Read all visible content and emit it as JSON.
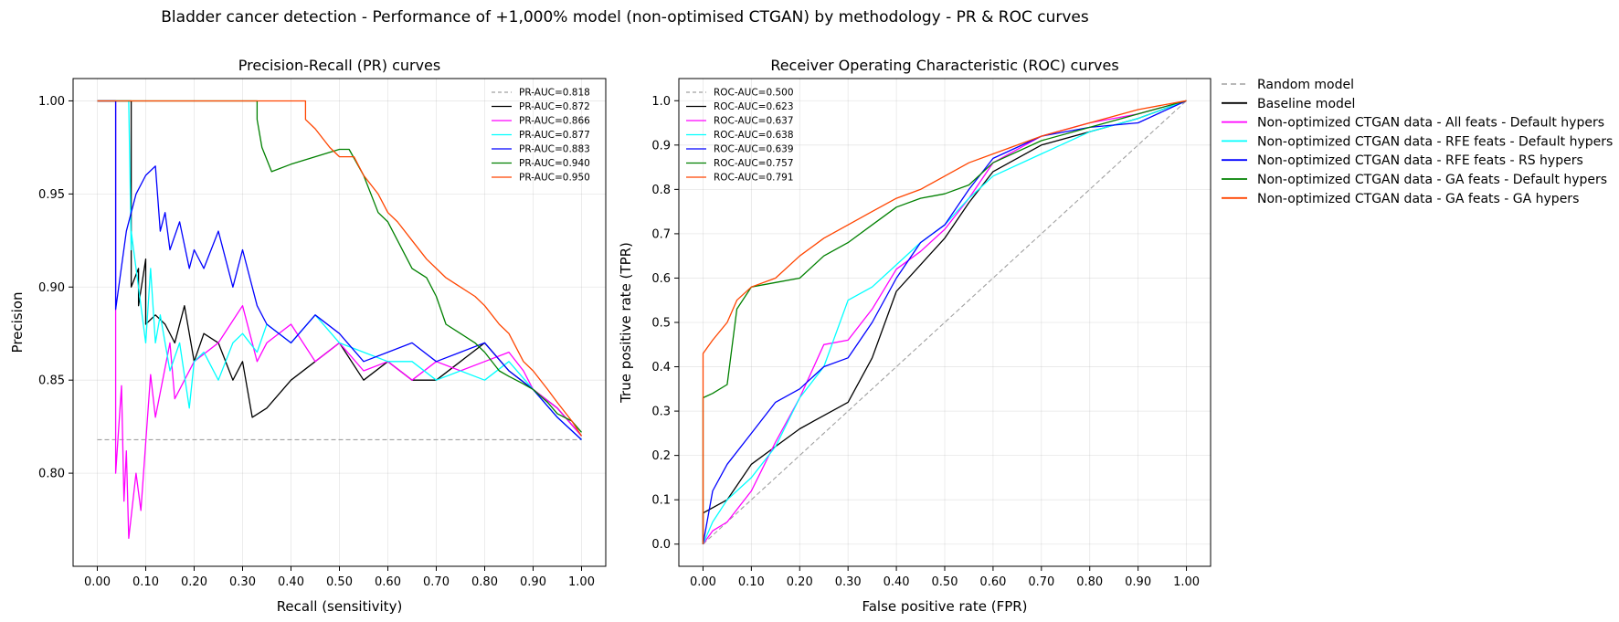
{
  "figure_title": "Bladder cancer detection - Performance of +1,000% model (non-optimised CTGAN) by methodology - PR & ROC curves",
  "figure_legend": [
    {
      "label": "Random model",
      "color": "#a0a0a0",
      "dashed": true
    },
    {
      "label": "Baseline model",
      "color": "#000000",
      "dashed": false
    },
    {
      "label": "Non-optimized CTGAN data - All feats - Default hypers",
      "color": "#ff00ff",
      "dashed": false
    },
    {
      "label": "Non-optimized CTGAN data - RFE feats - Default hypers",
      "color": "#00ffff",
      "dashed": false
    },
    {
      "label": "Non-optimized CTGAN data - RFE feats - RS hypers",
      "color": "#0000ff",
      "dashed": false
    },
    {
      "label": "Non-optimized CTGAN data - GA feats - Default hypers",
      "color": "#008000",
      "dashed": false
    },
    {
      "label": "Non-optimized CTGAN data - GA feats - GA hypers",
      "color": "#ff4500",
      "dashed": false
    }
  ],
  "chart_data": [
    {
      "type": "line",
      "title": "Precision-Recall (PR) curves",
      "xlabel": "Recall (sensitivity)",
      "ylabel": "Precision",
      "xlim": [
        -0.05,
        1.05
      ],
      "ylim": [
        0.75,
        1.012
      ],
      "xticks": [
        "0.00",
        "0.10",
        "0.20",
        "0.30",
        "0.40",
        "0.50",
        "0.60",
        "0.70",
        "0.80",
        "0.90",
        "1.00"
      ],
      "yticks": [
        "0.80",
        "0.85",
        "0.90",
        "0.95",
        "1.00"
      ],
      "grid": true,
      "legend_position": "top-right",
      "series": [
        {
          "name": "PR-AUC=0.818",
          "color": "#a0a0a0",
          "dashed": true,
          "x": [
            0,
            1
          ],
          "y": [
            0.818,
            0.818
          ]
        },
        {
          "name": "PR-AUC=0.872",
          "color": "#000000",
          "x": [
            0,
            0.07,
            0.07,
            0.085,
            0.085,
            0.1,
            0.1,
            0.12,
            0.14,
            0.16,
            0.18,
            0.2,
            0.22,
            0.25,
            0.28,
            0.3,
            0.32,
            0.35,
            0.4,
            0.45,
            0.5,
            0.55,
            0.6,
            0.65,
            0.7,
            0.75,
            0.8,
            0.85,
            0.9,
            0.95,
            1.0
          ],
          "y": [
            1.0,
            1.0,
            0.9,
            0.91,
            0.89,
            0.915,
            0.88,
            0.885,
            0.88,
            0.87,
            0.89,
            0.86,
            0.875,
            0.87,
            0.85,
            0.86,
            0.83,
            0.835,
            0.85,
            0.86,
            0.87,
            0.85,
            0.86,
            0.85,
            0.85,
            0.86,
            0.87,
            0.855,
            0.845,
            0.835,
            0.82
          ]
        },
        {
          "name": "PR-AUC=0.866",
          "color": "#ff00ff",
          "x": [
            0,
            0.038,
            0.038,
            0.05,
            0.055,
            0.06,
            0.065,
            0.08,
            0.09,
            0.11,
            0.12,
            0.15,
            0.16,
            0.2,
            0.25,
            0.3,
            0.33,
            0.35,
            0.4,
            0.45,
            0.5,
            0.55,
            0.6,
            0.65,
            0.7,
            0.75,
            0.8,
            0.85,
            0.88,
            0.9,
            0.95,
            1.0
          ],
          "y": [
            1.0,
            1.0,
            0.8,
            0.847,
            0.785,
            0.812,
            0.765,
            0.8,
            0.78,
            0.853,
            0.83,
            0.87,
            0.84,
            0.86,
            0.87,
            0.89,
            0.86,
            0.87,
            0.88,
            0.86,
            0.87,
            0.855,
            0.86,
            0.85,
            0.86,
            0.855,
            0.86,
            0.865,
            0.855,
            0.845,
            0.835,
            0.82
          ]
        },
        {
          "name": "PR-AUC=0.877",
          "color": "#00ffff",
          "x": [
            0,
            0.06,
            0.065,
            0.07,
            0.07,
            0.1,
            0.11,
            0.12,
            0.13,
            0.15,
            0.17,
            0.19,
            0.2,
            0.22,
            0.25,
            0.28,
            0.3,
            0.33,
            0.35,
            0.4,
            0.45,
            0.5,
            0.55,
            0.6,
            0.65,
            0.7,
            0.75,
            0.8,
            0.85,
            0.9,
            0.95,
            1.0
          ],
          "y": [
            1.0,
            1.0,
            1.0,
            0.92,
            0.93,
            0.87,
            0.91,
            0.87,
            0.885,
            0.855,
            0.87,
            0.835,
            0.86,
            0.865,
            0.85,
            0.87,
            0.875,
            0.865,
            0.88,
            0.87,
            0.885,
            0.87,
            0.865,
            0.86,
            0.86,
            0.85,
            0.855,
            0.85,
            0.86,
            0.845,
            0.83,
            0.818
          ]
        },
        {
          "name": "PR-AUC=0.883",
          "color": "#0000ff",
          "x": [
            0,
            0.038,
            0.038,
            0.06,
            0.08,
            0.1,
            0.12,
            0.13,
            0.14,
            0.15,
            0.17,
            0.19,
            0.2,
            0.22,
            0.25,
            0.28,
            0.3,
            0.33,
            0.35,
            0.4,
            0.45,
            0.5,
            0.55,
            0.6,
            0.65,
            0.7,
            0.75,
            0.8,
            0.85,
            0.9,
            0.95,
            1.0
          ],
          "y": [
            1.0,
            1.0,
            0.888,
            0.93,
            0.95,
            0.96,
            0.965,
            0.93,
            0.94,
            0.92,
            0.935,
            0.91,
            0.92,
            0.91,
            0.93,
            0.9,
            0.92,
            0.89,
            0.88,
            0.87,
            0.885,
            0.875,
            0.86,
            0.865,
            0.87,
            0.86,
            0.865,
            0.87,
            0.855,
            0.845,
            0.83,
            0.818
          ]
        },
        {
          "name": "PR-AUC=0.940",
          "color": "#008000",
          "x": [
            0,
            0.33,
            0.33,
            0.34,
            0.36,
            0.4,
            0.45,
            0.5,
            0.52,
            0.55,
            0.58,
            0.6,
            0.62,
            0.65,
            0.68,
            0.7,
            0.72,
            0.75,
            0.78,
            0.8,
            0.83,
            0.85,
            0.88,
            0.9,
            0.93,
            0.95,
            0.98,
            1.0
          ],
          "y": [
            1.0,
            1.0,
            0.99,
            0.975,
            0.962,
            0.966,
            0.97,
            0.974,
            0.974,
            0.96,
            0.94,
            0.935,
            0.925,
            0.91,
            0.905,
            0.895,
            0.88,
            0.875,
            0.87,
            0.865,
            0.855,
            0.852,
            0.848,
            0.845,
            0.838,
            0.832,
            0.828,
            0.822
          ]
        },
        {
          "name": "PR-AUC=0.950",
          "color": "#ff4500",
          "x": [
            0,
            0.43,
            0.43,
            0.45,
            0.48,
            0.5,
            0.53,
            0.55,
            0.58,
            0.6,
            0.62,
            0.65,
            0.68,
            0.7,
            0.72,
            0.75,
            0.78,
            0.8,
            0.83,
            0.85,
            0.88,
            0.9,
            0.93,
            0.95,
            0.98,
            1.0
          ],
          "y": [
            1.0,
            1.0,
            0.99,
            0.985,
            0.975,
            0.97,
            0.97,
            0.96,
            0.95,
            0.94,
            0.935,
            0.925,
            0.915,
            0.91,
            0.905,
            0.9,
            0.895,
            0.89,
            0.88,
            0.875,
            0.86,
            0.855,
            0.845,
            0.838,
            0.828,
            0.82
          ]
        }
      ]
    },
    {
      "type": "line",
      "title": "Receiver Operating Characteristic (ROC) curves",
      "xlabel": "False positive rate (FPR)",
      "ylabel": "True positive rate (TPR)",
      "xlim": [
        -0.05,
        1.05
      ],
      "ylim": [
        -0.05,
        1.05
      ],
      "xticks": [
        "0.00",
        "0.10",
        "0.20",
        "0.30",
        "0.40",
        "0.50",
        "0.60",
        "0.70",
        "0.80",
        "0.90",
        "1.00"
      ],
      "yticks": [
        "0.0",
        "0.1",
        "0.2",
        "0.3",
        "0.4",
        "0.5",
        "0.6",
        "0.7",
        "0.8",
        "0.9",
        "1.0"
      ],
      "grid": true,
      "legend_position": "top-left",
      "series": [
        {
          "name": "ROC-AUC=0.500",
          "color": "#a0a0a0",
          "dashed": true,
          "x": [
            0,
            1
          ],
          "y": [
            0,
            1
          ]
        },
        {
          "name": "ROC-AUC=0.623",
          "color": "#000000",
          "x": [
            0,
            0,
            0.05,
            0.1,
            0.15,
            0.2,
            0.25,
            0.3,
            0.35,
            0.4,
            0.45,
            0.5,
            0.55,
            0.6,
            0.7,
            0.8,
            0.9,
            1.0
          ],
          "y": [
            0,
            0.07,
            0.1,
            0.18,
            0.22,
            0.26,
            0.29,
            0.32,
            0.42,
            0.57,
            0.63,
            0.69,
            0.77,
            0.84,
            0.9,
            0.93,
            0.96,
            1.0
          ]
        },
        {
          "name": "ROC-AUC=0.637",
          "color": "#ff00ff",
          "x": [
            0,
            0.02,
            0.05,
            0.1,
            0.15,
            0.2,
            0.25,
            0.3,
            0.35,
            0.4,
            0.45,
            0.5,
            0.55,
            0.6,
            0.7,
            0.8,
            0.9,
            1.0
          ],
          "y": [
            0,
            0.03,
            0.05,
            0.12,
            0.23,
            0.33,
            0.45,
            0.46,
            0.53,
            0.62,
            0.66,
            0.71,
            0.78,
            0.86,
            0.92,
            0.95,
            0.97,
            1.0
          ]
        },
        {
          "name": "ROC-AUC=0.638",
          "color": "#00ffff",
          "x": [
            0,
            0.02,
            0.05,
            0.1,
            0.15,
            0.2,
            0.25,
            0.3,
            0.35,
            0.4,
            0.45,
            0.5,
            0.55,
            0.6,
            0.7,
            0.8,
            0.9,
            1.0
          ],
          "y": [
            0,
            0.05,
            0.1,
            0.15,
            0.22,
            0.33,
            0.4,
            0.55,
            0.58,
            0.63,
            0.68,
            0.72,
            0.78,
            0.83,
            0.88,
            0.93,
            0.96,
            1.0
          ]
        },
        {
          "name": "ROC-AUC=0.639",
          "color": "#0000ff",
          "x": [
            0,
            0.02,
            0.05,
            0.1,
            0.15,
            0.2,
            0.25,
            0.3,
            0.35,
            0.4,
            0.45,
            0.5,
            0.55,
            0.6,
            0.7,
            0.8,
            0.9,
            1.0
          ],
          "y": [
            0,
            0.12,
            0.18,
            0.25,
            0.32,
            0.35,
            0.4,
            0.42,
            0.5,
            0.6,
            0.68,
            0.72,
            0.8,
            0.87,
            0.92,
            0.94,
            0.95,
            1.0
          ]
        },
        {
          "name": "ROC-AUC=0.757",
          "color": "#008000",
          "x": [
            0,
            0,
            0.02,
            0.05,
            0.07,
            0.1,
            0.15,
            0.2,
            0.25,
            0.3,
            0.35,
            0.4,
            0.45,
            0.5,
            0.55,
            0.6,
            0.7,
            0.8,
            0.9,
            1.0
          ],
          "y": [
            0,
            0.33,
            0.34,
            0.36,
            0.53,
            0.58,
            0.59,
            0.6,
            0.65,
            0.68,
            0.72,
            0.76,
            0.78,
            0.79,
            0.81,
            0.86,
            0.91,
            0.94,
            0.97,
            1.0
          ]
        },
        {
          "name": "ROC-AUC=0.791",
          "color": "#ff4500",
          "x": [
            0,
            0,
            0.02,
            0.05,
            0.07,
            0.1,
            0.15,
            0.2,
            0.25,
            0.3,
            0.35,
            0.4,
            0.45,
            0.5,
            0.55,
            0.6,
            0.7,
            0.8,
            0.9,
            1.0
          ],
          "y": [
            0,
            0.43,
            0.46,
            0.5,
            0.55,
            0.58,
            0.6,
            0.65,
            0.69,
            0.72,
            0.75,
            0.78,
            0.8,
            0.83,
            0.86,
            0.88,
            0.92,
            0.95,
            0.98,
            1.0
          ]
        }
      ]
    }
  ]
}
